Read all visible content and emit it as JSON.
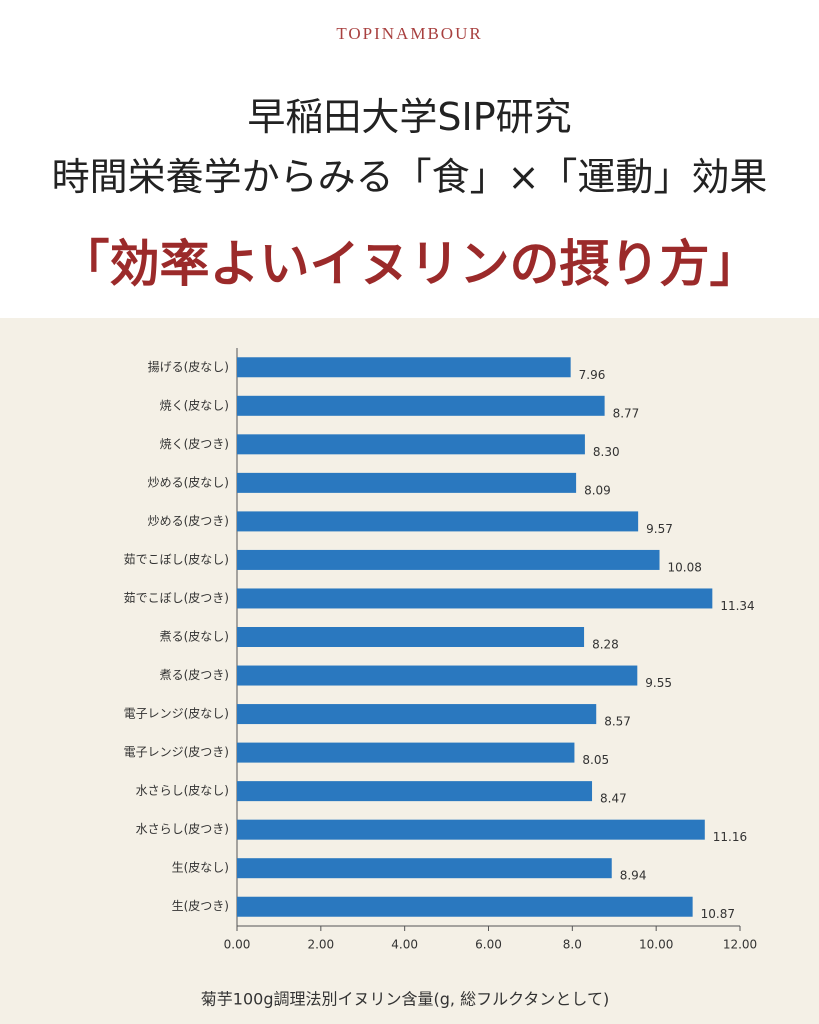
{
  "header": {
    "brand": "TOPINAMBOUR",
    "title_lines": [
      "早稲田大学SIP研究",
      "時間栄養学からみる「食」×「運動」効果"
    ],
    "headline": "「効率よいイヌリンの摂り方」"
  },
  "chart_data": {
    "type": "barh",
    "title": "菊芋100g調理法別イヌリン含量(g, 総フルクタンとして)",
    "categories": [
      "揚げる(皮なし)",
      "焼く(皮なし)",
      "焼く(皮つき)",
      "炒める(皮なし)",
      "炒める(皮つき)",
      "茹でこぼし(皮なし)",
      "茹でこぼし(皮つき)",
      "煮る(皮なし)",
      "煮る(皮つき)",
      "電子レンジ(皮なし)",
      "電子レンジ(皮つき)",
      "水さらし(皮なし)",
      "水さらし(皮つき)",
      "生(皮なし)",
      "生(皮つき)"
    ],
    "values": [
      7.96,
      8.77,
      8.3,
      8.09,
      9.57,
      10.08,
      11.34,
      8.28,
      9.55,
      8.57,
      8.05,
      8.47,
      11.16,
      8.94,
      10.87
    ],
    "value_labels": [
      "7.96",
      "8.77",
      "8.30",
      "8.09",
      "9.57",
      "10.08",
      "11.34",
      "8.28",
      "9.55",
      "8.57",
      "8.05",
      "8.47",
      "11.16",
      "8.94",
      "10.87"
    ],
    "color": "#2a78bf",
    "xlim": [
      0,
      12
    ],
    "xticks": [
      {
        "value": 0,
        "label": "0.00"
      },
      {
        "value": 2,
        "label": "2.00"
      },
      {
        "value": 4,
        "label": "4.00"
      },
      {
        "value": 6,
        "label": "6.00"
      },
      {
        "value": 8,
        "label": "8.0"
      },
      {
        "value": 10,
        "label": "10.00"
      },
      {
        "value": 12,
        "label": "12.00"
      }
    ]
  }
}
